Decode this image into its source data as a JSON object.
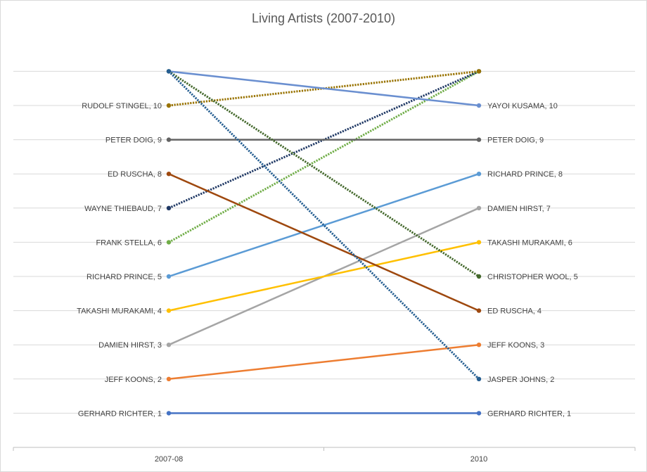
{
  "chart_data": {
    "type": "line",
    "subtype": "slope",
    "title": "Living Artists (2007-2010)",
    "categories": [
      "2007-08",
      "2010"
    ],
    "ylim": [
      0,
      11
    ],
    "grid": true,
    "legend": "none",
    "series": [
      {
        "start": {
          "label": "GERHARD RICHTER, 1",
          "value": 1
        },
        "end": {
          "label": "GERHARD RICHTER, 1",
          "value": 1
        },
        "color": "#4472c4",
        "dash": false
      },
      {
        "start": {
          "label": "JEFF KOONS, 2",
          "value": 2
        },
        "end": {
          "label": "JEFF KOONS, 3",
          "value": 3
        },
        "color": "#ed7d31",
        "dash": false
      },
      {
        "start": {
          "label": "DAMIEN HIRST, 3",
          "value": 3
        },
        "end": {
          "label": "DAMIEN HIRST, 7",
          "value": 7
        },
        "color": "#a5a5a5",
        "dash": false
      },
      {
        "start": {
          "label": "TAKASHI MURAKAMI, 4",
          "value": 4
        },
        "end": {
          "label": "TAKASHI MURAKAMI, 6",
          "value": 6
        },
        "color": "#ffc000",
        "dash": false
      },
      {
        "start": {
          "label": "RICHARD PRINCE, 5",
          "value": 5
        },
        "end": {
          "label": "RICHARD PRINCE, 8",
          "value": 8
        },
        "color": "#5b9bd5",
        "dash": false
      },
      {
        "start": {
          "label": "FRANK STELLA, 6",
          "value": 6
        },
        "end": {
          "label": "",
          "value": 11
        },
        "color": "#70ad47",
        "dash": true
      },
      {
        "start": {
          "label": "WAYNE THIEBAUD, 7",
          "value": 7
        },
        "end": {
          "label": "",
          "value": 11
        },
        "color": "#1f3864",
        "dash": true
      },
      {
        "start": {
          "label": "ED RUSCHA, 8",
          "value": 8
        },
        "end": {
          "label": "ED RUSCHA, 4",
          "value": 4
        },
        "color": "#9e480e",
        "dash": false
      },
      {
        "start": {
          "label": "PETER DOIG, 9",
          "value": 9
        },
        "end": {
          "label": "PETER DOIG, 9",
          "value": 9
        },
        "color": "#636363",
        "dash": false
      },
      {
        "start": {
          "label": "RUDOLF STINGEL, 10",
          "value": 10
        },
        "end": {
          "label": "",
          "value": 11
        },
        "color": "#997300",
        "dash": true
      },
      {
        "start": {
          "label": "",
          "value": 11
        },
        "end": {
          "label": "YAYOI KUSAMA, 10",
          "value": 10
        },
        "color": "#6a8fd0",
        "dash": false
      },
      {
        "start": {
          "label": "",
          "value": 11
        },
        "end": {
          "label": "CHRISTOPHER WOOL, 5",
          "value": 5
        },
        "color": "#43682b",
        "dash": true
      },
      {
        "start": {
          "label": "",
          "value": 11
        },
        "end": {
          "label": "JASPER JOHNS, 2",
          "value": 2
        },
        "color": "#255e91",
        "dash": true
      }
    ]
  }
}
